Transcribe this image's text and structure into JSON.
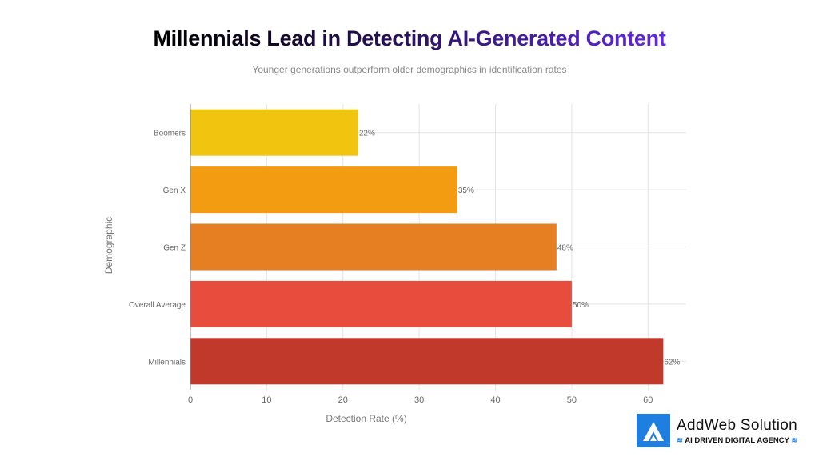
{
  "chart_data": {
    "type": "bar",
    "orientation": "horizontal",
    "title": "Millennials Lead in Detecting AI-Generated Content",
    "subtitle": "Younger generations outperform older demographics in identification rates",
    "xlabel": "Detection Rate (%)",
    "ylabel": "Demographic",
    "categories": [
      "Boomers",
      "Gen X",
      "Gen Z",
      "Overall Average",
      "Millennials"
    ],
    "values": [
      22,
      35,
      48,
      50,
      62
    ],
    "data_labels": [
      "22%",
      "35%",
      "48%",
      "50%",
      "62%"
    ],
    "colors": [
      "#f1c40f",
      "#f39c12",
      "#e67e22",
      "#e74c3c",
      "#c0392b"
    ],
    "xlim": [
      0,
      65
    ],
    "xticks": [
      0,
      10,
      20,
      30,
      40,
      50,
      60
    ],
    "grid": true
  },
  "logo": {
    "name": "AddWeb Solution",
    "tagline": "AI DRIVEN DIGITAL AGENCY"
  }
}
